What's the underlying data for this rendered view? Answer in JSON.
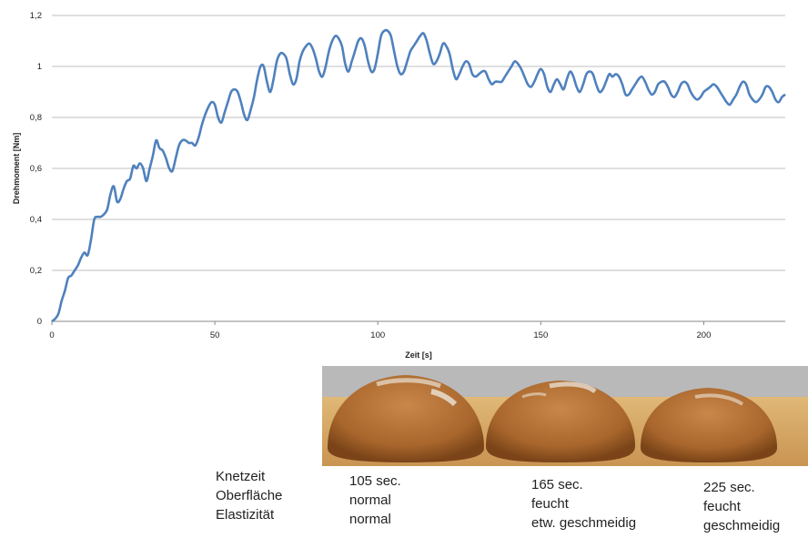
{
  "chart_data": {
    "type": "line",
    "xlabel": "Zeit [s]",
    "ylabel": "Drehmoment [Nm]",
    "xlim": [
      0,
      225
    ],
    "ylim": [
      0,
      1.2
    ],
    "x_ticks": [
      {
        "value": 0,
        "label": "0"
      },
      {
        "value": 50,
        "label": "50"
      },
      {
        "value": 100,
        "label": "100"
      },
      {
        "value": 150,
        "label": "150"
      },
      {
        "value": 200,
        "label": "200"
      }
    ],
    "y_ticks": [
      {
        "value": 0,
        "label": "0"
      },
      {
        "value": 0.2,
        "label": "0,2"
      },
      {
        "value": 0.4,
        "label": "0,4"
      },
      {
        "value": 0.6,
        "label": "0,6"
      },
      {
        "value": 0.8,
        "label": "0,8"
      },
      {
        "value": 1.0,
        "label": "1"
      },
      {
        "value": 1.2,
        "label": "1,2"
      }
    ],
    "grid": "horizontal",
    "line_color": "#4f81bd",
    "series": [
      {
        "x": [
          0,
          1,
          2,
          3,
          4,
          5,
          6,
          7,
          8,
          9,
          10,
          11,
          12,
          13,
          14,
          15,
          16,
          17,
          18,
          19,
          20,
          21,
          22,
          23,
          24,
          25,
          26,
          27,
          28,
          29,
          30,
          31,
          32,
          33,
          34,
          35,
          36,
          37,
          38,
          39,
          40,
          41,
          42,
          43,
          44,
          45,
          46,
          47,
          48,
          49,
          50,
          51,
          52,
          53,
          54,
          55,
          56,
          57,
          58,
          59,
          60,
          61,
          62,
          63,
          64,
          65,
          66,
          67,
          68,
          69,
          70,
          71,
          72,
          73,
          74,
          75,
          76,
          77,
          78,
          79,
          80,
          81,
          82,
          83,
          84,
          85,
          86,
          87,
          88,
          89,
          90,
          91,
          92,
          93,
          94,
          95,
          96,
          97,
          98,
          99,
          100,
          101,
          102,
          103,
          104,
          105,
          106,
          107,
          108,
          109,
          110,
          111,
          112,
          113,
          114,
          115,
          116,
          117,
          118,
          119,
          120,
          121,
          122,
          123,
          124,
          125,
          126,
          127,
          128,
          129,
          130,
          131,
          132,
          133,
          134,
          135,
          136,
          137,
          138,
          139,
          140,
          141,
          142,
          143,
          144,
          145,
          146,
          147,
          148,
          149,
          150,
          151,
          152,
          153,
          154,
          155,
          156,
          157,
          158,
          159,
          160,
          161,
          162,
          163,
          164,
          165,
          166,
          167,
          168,
          169,
          170,
          171,
          172,
          173,
          174,
          175,
          176,
          177,
          178,
          179,
          180,
          181,
          182,
          183,
          184,
          185,
          186,
          187,
          188,
          189,
          190,
          191,
          192,
          193,
          194,
          195,
          196,
          197,
          198,
          199,
          200,
          201,
          202,
          203,
          204,
          205,
          206,
          207,
          208,
          209,
          210,
          211,
          212,
          213,
          214,
          215,
          216,
          217,
          218,
          219,
          220,
          221,
          222,
          223,
          224,
          225
        ],
        "y": [
          0,
          0.01,
          0.03,
          0.08,
          0.12,
          0.17,
          0.18,
          0.2,
          0.22,
          0.25,
          0.27,
          0.26,
          0.32,
          0.4,
          0.41,
          0.41,
          0.42,
          0.44,
          0.5,
          0.53,
          0.47,
          0.48,
          0.52,
          0.55,
          0.56,
          0.61,
          0.6,
          0.62,
          0.6,
          0.55,
          0.6,
          0.65,
          0.71,
          0.68,
          0.67,
          0.64,
          0.6,
          0.59,
          0.64,
          0.69,
          0.71,
          0.71,
          0.7,
          0.7,
          0.69,
          0.72,
          0.77,
          0.81,
          0.84,
          0.86,
          0.85,
          0.8,
          0.78,
          0.82,
          0.86,
          0.9,
          0.91,
          0.9,
          0.86,
          0.81,
          0.79,
          0.83,
          0.88,
          0.95,
          1.0,
          1.0,
          0.94,
          0.9,
          0.95,
          1.02,
          1.05,
          1.05,
          1.03,
          0.97,
          0.93,
          0.95,
          1.02,
          1.06,
          1.08,
          1.09,
          1.07,
          1.03,
          0.98,
          0.96,
          1.0,
          1.06,
          1.1,
          1.12,
          1.11,
          1.08,
          1.01,
          0.98,
          1.02,
          1.06,
          1.1,
          1.11,
          1.08,
          1.02,
          0.98,
          0.99,
          1.05,
          1.12,
          1.14,
          1.14,
          1.12,
          1.06,
          1.0,
          0.97,
          0.98,
          1.02,
          1.06,
          1.08,
          1.1,
          1.12,
          1.13,
          1.1,
          1.05,
          1.01,
          1.02,
          1.05,
          1.09,
          1.08,
          1.05,
          0.99,
          0.95,
          0.97,
          1.0,
          1.02,
          1.01,
          0.97,
          0.96,
          0.97,
          0.98,
          0.98,
          0.95,
          0.93,
          0.94,
          0.94,
          0.94,
          0.96,
          0.98,
          1.0,
          1.02,
          1.01,
          0.99,
          0.96,
          0.93,
          0.92,
          0.94,
          0.97,
          0.99,
          0.97,
          0.92,
          0.9,
          0.93,
          0.95,
          0.93,
          0.91,
          0.95,
          0.98,
          0.96,
          0.92,
          0.9,
          0.93,
          0.97,
          0.98,
          0.97,
          0.93,
          0.9,
          0.91,
          0.94,
          0.97,
          0.96,
          0.97,
          0.96,
          0.93,
          0.89,
          0.89,
          0.91,
          0.93,
          0.95,
          0.96,
          0.94,
          0.91,
          0.89,
          0.9,
          0.93,
          0.94,
          0.94,
          0.92,
          0.89,
          0.88,
          0.9,
          0.93,
          0.94,
          0.93,
          0.9,
          0.88,
          0.87,
          0.88,
          0.9,
          0.91,
          0.92,
          0.93,
          0.92,
          0.9,
          0.88,
          0.86,
          0.85,
          0.87,
          0.89,
          0.92,
          0.94,
          0.93,
          0.89,
          0.87,
          0.86,
          0.87,
          0.89,
          0.92,
          0.92,
          0.9,
          0.87,
          0.86,
          0.88,
          0.89
        ]
      }
    ]
  },
  "photo": {
    "background_color": "#b9b9ba",
    "board_color": "#d4a663",
    "loaf_color": "#b06f32"
  },
  "captions": {
    "row_labels": [
      "Knetzeit",
      "Oberfläche",
      "Elastizität"
    ],
    "columns": [
      [
        "105 sec.",
        "normal",
        "normal"
      ],
      [
        "165 sec.",
        "feucht",
        "etw. geschmeidig"
      ],
      [
        "225 sec.",
        "feucht",
        "geschmeidig"
      ]
    ]
  }
}
